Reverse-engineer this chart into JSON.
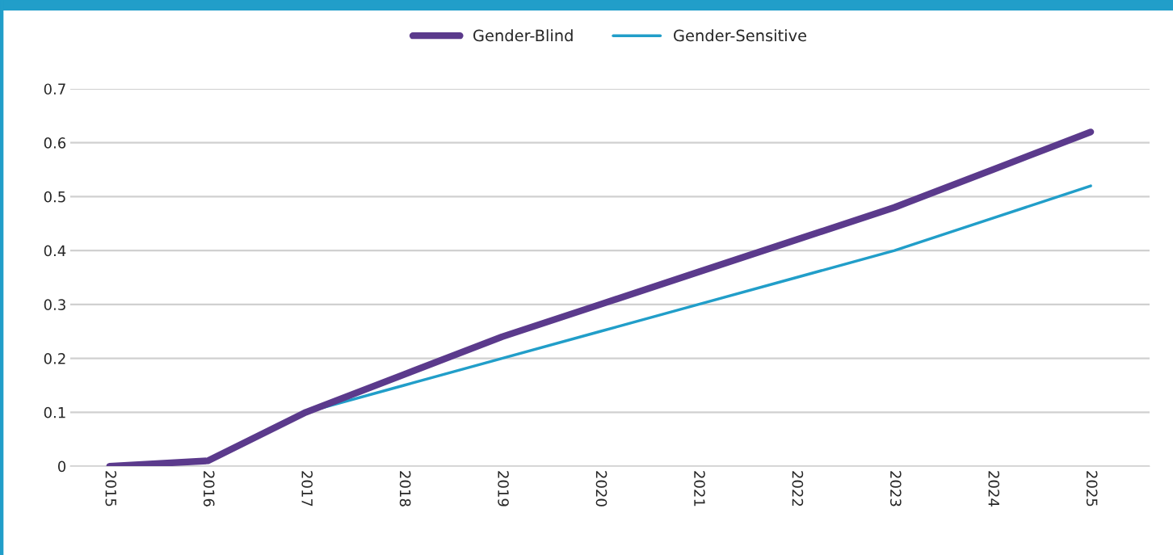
{
  "chart_data": {
    "type": "line",
    "categories": [
      "2015",
      "2016",
      "2017",
      "2018",
      "2019",
      "2020",
      "2021",
      "2022",
      "2023",
      "2024",
      "2025"
    ],
    "series": [
      {
        "name": "Gender-Blind",
        "color": "#5b3a8c",
        "values": [
          0.0,
          0.01,
          0.1,
          0.17,
          0.24,
          0.3,
          0.36,
          0.42,
          0.48,
          0.55,
          0.62
        ]
      },
      {
        "name": "Gender-Sensitive",
        "color": "#219ec9",
        "values": [
          0.0,
          0.01,
          0.1,
          0.15,
          0.2,
          0.25,
          0.3,
          0.35,
          0.4,
          0.46,
          0.52
        ]
      }
    ],
    "ylim": [
      0,
      0.7
    ],
    "yticks": [
      0,
      0.1,
      0.2,
      0.3,
      0.4,
      0.5,
      0.6,
      0.7
    ],
    "grid": "y",
    "legend": "top",
    "marker": "none",
    "line_style": "solid"
  }
}
